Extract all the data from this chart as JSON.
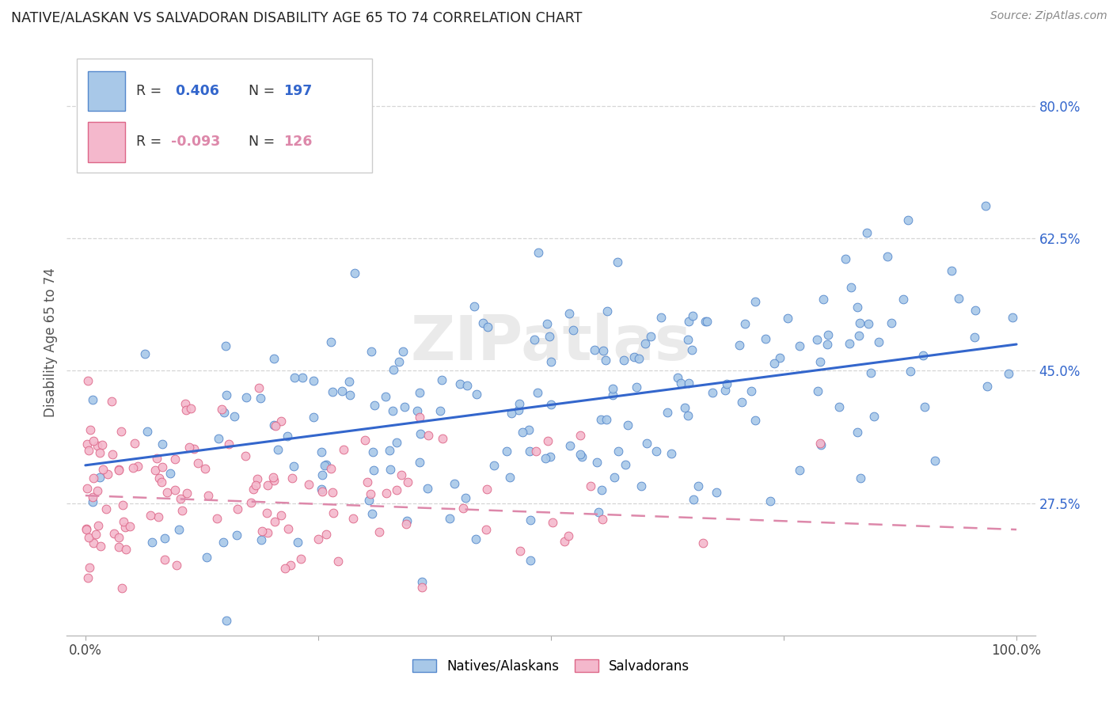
{
  "title": "NATIVE/ALASKAN VS SALVADORAN DISABILITY AGE 65 TO 74 CORRELATION CHART",
  "source": "Source: ZipAtlas.com",
  "ylabel": "Disability Age 65 to 74",
  "ytick_vals": [
    0.275,
    0.45,
    0.625,
    0.8
  ],
  "xtick_vals": [
    0.0,
    0.25,
    0.5,
    0.75,
    1.0
  ],
  "xtick_labels": [
    "0.0%",
    "",
    "",
    "",
    "100.0%"
  ],
  "ylim": [
    0.1,
    0.875
  ],
  "xlim": [
    -0.02,
    1.02
  ],
  "scatter_blue_color": "#a8c8e8",
  "scatter_blue_edge": "#5588cc",
  "scatter_pink_color": "#f4b8cc",
  "scatter_pink_edge": "#dd6688",
  "line_blue_color": "#3366cc",
  "line_pink_color": "#dd88aa",
  "watermark": "ZIPatlas",
  "background_color": "#ffffff",
  "grid_color": "#cccccc",
  "title_color": "#222222",
  "source_color": "#888888",
  "blue_R": 0.406,
  "blue_N": 197,
  "pink_R": -0.093,
  "pink_N": 126,
  "blue_line_x": [
    0.0,
    1.0
  ],
  "blue_line_y": [
    0.325,
    0.485
  ],
  "pink_line_x": [
    0.0,
    1.0
  ],
  "pink_line_y": [
    0.285,
    0.24
  ],
  "legend_label_blue": "Natives/Alaskans",
  "legend_label_pink": "Salvadorans",
  "ytick_color": "#3366cc"
}
